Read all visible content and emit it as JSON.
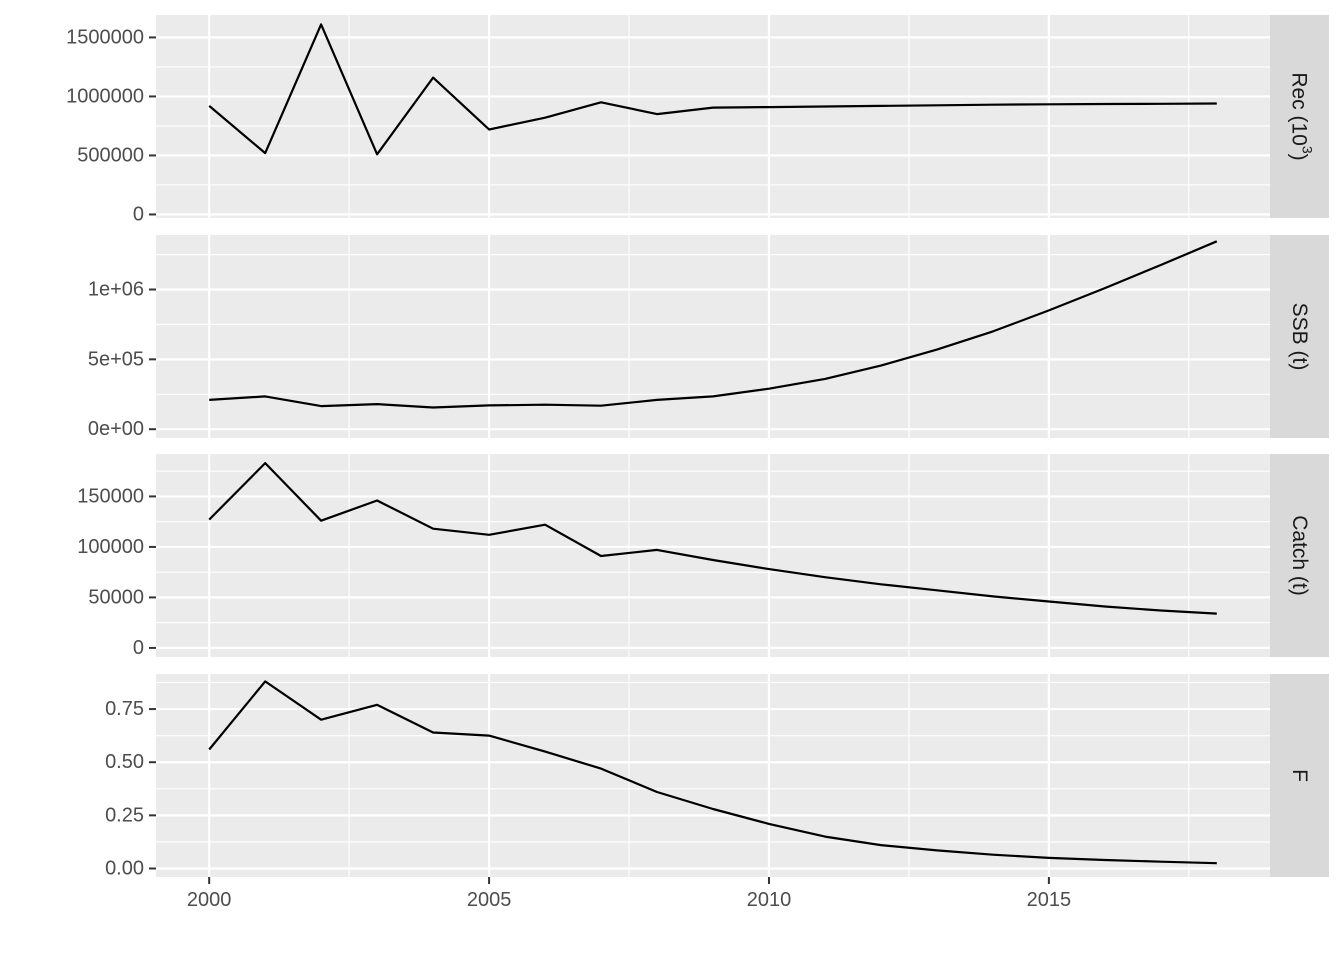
{
  "chart_data": {
    "type": "line",
    "layout": "faceted-vertical",
    "x": [
      2000,
      2001,
      2002,
      2003,
      2004,
      2005,
      2006,
      2007,
      2008,
      2009,
      2010,
      2011,
      2012,
      2013,
      2014,
      2015,
      2016,
      2017,
      2018
    ],
    "xlim": [
      1999.05,
      2018.95
    ],
    "x_ticks": [
      2000,
      2005,
      2010,
      2015
    ],
    "x_tick_labels": [
      "2000",
      "2005",
      "2010",
      "2015"
    ],
    "line_color": "#000000",
    "panel_background": "#ebebeb",
    "strip_background": "#d9d9d9",
    "grid": true,
    "facets": [
      {
        "label": "Rec (10",
        "label_sup": "3",
        "label_suffix": ")",
        "ylim": [
          -30000,
          1690000
        ],
        "y_ticks": [
          0,
          500000,
          1000000,
          1500000
        ],
        "y_tick_labels": [
          "0",
          "500000",
          "1000000",
          "1500000"
        ],
        "values": [
          920000,
          520000,
          1610000,
          510000,
          1160000,
          720000,
          820000,
          950000,
          850000,
          905000,
          910000,
          915000,
          920000,
          925000,
          930000,
          933000,
          936000,
          938000,
          940000
        ]
      },
      {
        "label": "SSB (t)",
        "ylim": [
          -63000,
          1390000
        ],
        "y_ticks": [
          0,
          500000,
          1000000
        ],
        "y_tick_labels": [
          "0e+00",
          "5e+05",
          "1e+06"
        ],
        "values": [
          210000,
          235000,
          165000,
          180000,
          155000,
          170000,
          175000,
          168000,
          210000,
          235000,
          290000,
          360000,
          455000,
          570000,
          700000,
          850000,
          1010000,
          1175000,
          1345000
        ]
      },
      {
        "label": "Catch (t)",
        "ylim": [
          -9000,
          192000
        ],
        "y_ticks": [
          0,
          50000,
          100000,
          150000
        ],
        "y_tick_labels": [
          "0",
          "50000",
          "100000",
          "150000"
        ],
        "values": [
          127000,
          183000,
          126000,
          146000,
          118000,
          112000,
          122000,
          91000,
          97000,
          87000,
          78000,
          70000,
          63000,
          57000,
          51000,
          46000,
          41000,
          37000,
          34000
        ]
      },
      {
        "label": "F",
        "ylim": [
          -0.04,
          0.915
        ],
        "y_ticks": [
          0.0,
          0.25,
          0.5,
          0.75
        ],
        "y_tick_labels": [
          "0.00",
          "0.25",
          "0.50",
          "0.75"
        ],
        "values": [
          0.56,
          0.88,
          0.7,
          0.77,
          0.64,
          0.625,
          0.55,
          0.47,
          0.36,
          0.28,
          0.21,
          0.15,
          0.11,
          0.085,
          0.065,
          0.05,
          0.04,
          0.032,
          0.025
        ]
      }
    ]
  }
}
